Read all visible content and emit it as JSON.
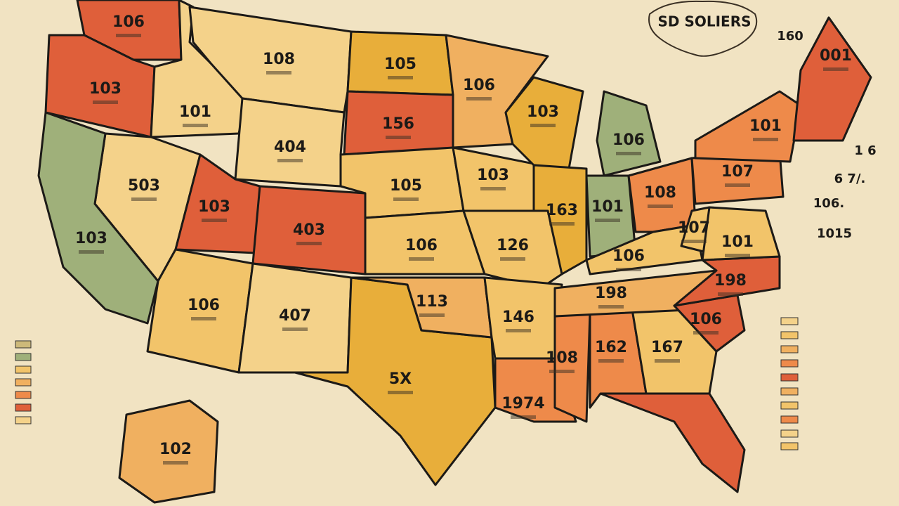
{
  "title": "SD SOLIERS",
  "regions": [
    {
      "label": "106"
    },
    {
      "label": "103"
    },
    {
      "label": "101"
    },
    {
      "label": "108"
    },
    {
      "label": "105"
    },
    {
      "label": "106"
    },
    {
      "label": "404"
    },
    {
      "label": "156"
    },
    {
      "label": "503"
    },
    {
      "label": "103"
    },
    {
      "label": "103"
    },
    {
      "label": "403"
    },
    {
      "label": "105"
    },
    {
      "label": "106"
    },
    {
      "label": "103"
    },
    {
      "label": "103"
    },
    {
      "label": "106"
    },
    {
      "label": "163"
    },
    {
      "label": "101"
    },
    {
      "label": "108"
    },
    {
      "label": "126"
    },
    {
      "label": "106"
    },
    {
      "label": "407"
    },
    {
      "label": "5X"
    },
    {
      "label": "113"
    },
    {
      "label": "146"
    },
    {
      "label": "1974"
    },
    {
      "label": "108"
    },
    {
      "label": "162"
    },
    {
      "label": "167"
    },
    {
      "label": "198"
    },
    {
      "label": "106"
    },
    {
      "label": "106"
    },
    {
      "label": "198"
    },
    {
      "label": "107"
    },
    {
      "label": "101"
    },
    {
      "label": "107"
    },
    {
      "label": "101"
    },
    {
      "label": "001"
    },
    {
      "label": "102"
    }
  ],
  "annotations": [
    "160",
    "1 6",
    "6 7/.",
    "106.",
    "1015"
  ]
}
